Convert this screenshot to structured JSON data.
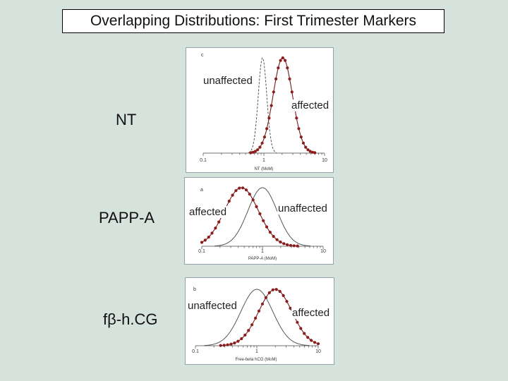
{
  "title": "Overlapping Distributions: First Trimester Markers",
  "rows": [
    {
      "label": "NT"
    },
    {
      "label": "PAPP-A"
    },
    {
      "label_prefix": "f",
      "label_greek": "β",
      "label_suffix": "-h.CG"
    }
  ],
  "chart_data": [
    {
      "type": "line",
      "panel_letter": "c",
      "xscale": "log",
      "xlim": [
        0.1,
        10
      ],
      "xticks": [
        "0.1",
        "1",
        "10"
      ],
      "xlabel": "NT (MoM)",
      "series": [
        {
          "name": "unaffected",
          "style": "dashed-gray",
          "curve": "lognormal",
          "median_mom": 0.95,
          "sd_log10": 0.07
        },
        {
          "name": "affected",
          "style": "dotted-red",
          "curve": "lognormal",
          "median_mom": 2.05,
          "sd_log10": 0.16
        }
      ],
      "labels": {
        "unaffected": "unaffected",
        "affected": "affected"
      }
    },
    {
      "type": "line",
      "panel_letter": "a",
      "xscale": "log",
      "xlim": [
        0.1,
        10
      ],
      "xticks": [
        "0.1",
        "1",
        "10"
      ],
      "xlabel": "PAPP-A (MoM)",
      "series": [
        {
          "name": "unaffected",
          "style": "solid-gray",
          "curve": "lognormal",
          "median_mom": 1.0,
          "sd_log10": 0.24
        },
        {
          "name": "affected",
          "style": "dotted-red",
          "curve": "lognormal",
          "median_mom": 0.45,
          "sd_log10": 0.28
        }
      ],
      "labels": {
        "affected": "affected",
        "unaffected": "unaffected"
      }
    },
    {
      "type": "line",
      "panel_letter": "b",
      "xscale": "log",
      "xlim": [
        0.1,
        10
      ],
      "xticks": [
        "0.1",
        "1",
        "10"
      ],
      "xlabel": "Free-beta hCG (MoM)",
      "series": [
        {
          "name": "unaffected",
          "style": "solid-gray",
          "curve": "lognormal",
          "median_mom": 1.0,
          "sd_log10": 0.26
        },
        {
          "name": "affected",
          "style": "dotted-red",
          "curve": "lognormal",
          "median_mom": 2.0,
          "sd_log10": 0.27
        }
      ],
      "labels": {
        "unaffected": "unaffected",
        "affected": "affected"
      }
    }
  ],
  "colors": {
    "background": "#d6e2dc",
    "affected_curve": "#7a1a1a",
    "affected_dot": "#8b1c1c",
    "unaffected_curve": "#555555",
    "panel_border": "#94a3ad"
  }
}
